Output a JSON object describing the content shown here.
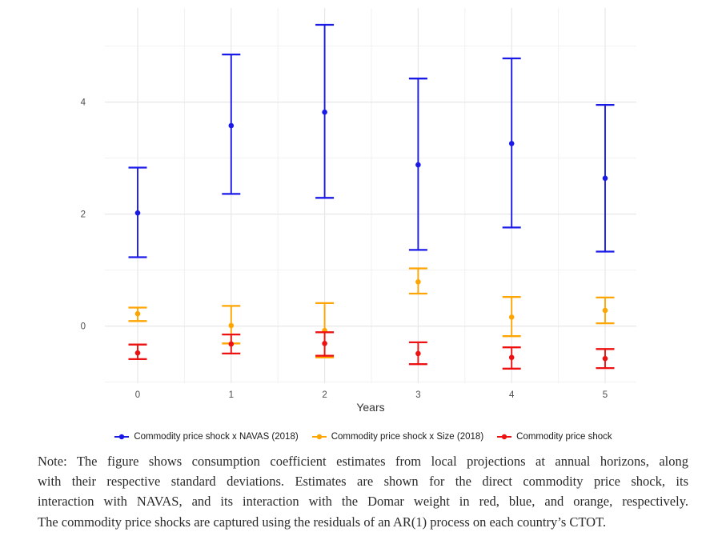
{
  "chart_data": {
    "type": "scatter",
    "subtype": "pointrange-errorbar",
    "title": "",
    "xlabel": "Years",
    "ylabel": "",
    "x_tick_labels": [
      "0",
      "1",
      "2",
      "3",
      "4",
      "5"
    ],
    "y_tick_values": [
      0,
      2,
      4
    ],
    "y_minor_gridlines": [
      -1,
      1,
      3,
      5
    ],
    "x_minor_gridlines": [
      0.5,
      1.5,
      2.5,
      3.5,
      4.5
    ],
    "ylim": [
      -1.02,
      5.68
    ],
    "grid": true,
    "legend_position": "bottom",
    "colors": {
      "axis_text": "#4d4d4d",
      "axis_title": "#333333",
      "grid_major": "#e7e7e7",
      "grid_minor": "#f1f1f1",
      "background": "#ffffff"
    },
    "series": [
      {
        "name": "Commodity price shock x NAVAS (2018)",
        "color": "#1a1ae8",
        "points": [
          {
            "x": 0,
            "est": 2.02,
            "lo": 1.23,
            "hi": 2.83
          },
          {
            "x": 1,
            "est": 3.58,
            "lo": 2.36,
            "hi": 4.85
          },
          {
            "x": 2,
            "est": 3.82,
            "lo": 2.29,
            "hi": 5.38
          },
          {
            "x": 3,
            "est": 2.88,
            "lo": 1.36,
            "hi": 4.42
          },
          {
            "x": 4,
            "est": 3.26,
            "lo": 1.76,
            "hi": 4.78
          },
          {
            "x": 5,
            "est": 2.64,
            "lo": 1.33,
            "hi": 3.95
          }
        ]
      },
      {
        "name": "Commodity price shock x Size (2018)",
        "color": "#ffa502",
        "points": [
          {
            "x": 0,
            "est": 0.22,
            "lo": 0.09,
            "hi": 0.33
          },
          {
            "x": 1,
            "est": 0.01,
            "lo": -0.31,
            "hi": 0.36
          },
          {
            "x": 2,
            "est": -0.08,
            "lo": -0.56,
            "hi": 0.41
          },
          {
            "x": 3,
            "est": 0.79,
            "lo": 0.58,
            "hi": 1.03
          },
          {
            "x": 4,
            "est": 0.16,
            "lo": -0.18,
            "hi": 0.52
          },
          {
            "x": 5,
            "est": 0.28,
            "lo": 0.05,
            "hi": 0.51
          }
        ]
      },
      {
        "name": "Commodity price shock",
        "color": "#ee1111",
        "points": [
          {
            "x": 0,
            "est": -0.48,
            "lo": -0.59,
            "hi": -0.33
          },
          {
            "x": 1,
            "est": -0.32,
            "lo": -0.49,
            "hi": -0.15
          },
          {
            "x": 2,
            "est": -0.31,
            "lo": -0.53,
            "hi": -0.11
          },
          {
            "x": 3,
            "est": -0.49,
            "lo": -0.68,
            "hi": -0.29
          },
          {
            "x": 4,
            "est": -0.56,
            "lo": -0.76,
            "hi": -0.38
          },
          {
            "x": 5,
            "est": -0.58,
            "lo": -0.75,
            "hi": -0.41
          }
        ]
      }
    ]
  },
  "note": {
    "lines": [
      "Note: The figure shows consumption coefficient estimates from local projections at annual horizons, along",
      "with their respective standard deviations. Estimates are shown for the direct commodity price shock, its",
      "interaction with NAVAS, and its interaction with the Domar weight in red, blue, and orange, respectively.",
      "The commodity price shocks are captured using the residuals of an AR(1) process on each country’s CTOT."
    ]
  }
}
